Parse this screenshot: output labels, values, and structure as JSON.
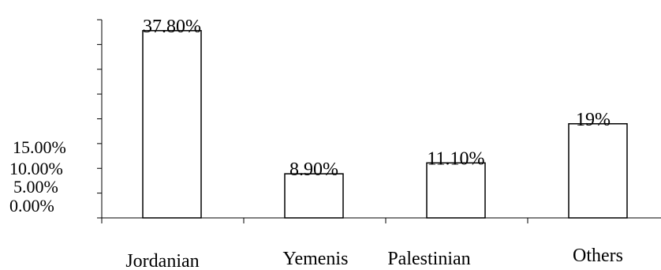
{
  "chart_data": {
    "type": "bar",
    "categories": [
      "Jordanian",
      "Yemenis",
      "Palestinian",
      "Others"
    ],
    "values": [
      37.8,
      8.9,
      11.1,
      19
    ],
    "data_labels": [
      "37.80%",
      "8.90%",
      "11.10%",
      "19%"
    ],
    "y_tick_labels": [
      "0.00%",
      "5.00%",
      "10.00%",
      "15.00%"
    ],
    "ylim": [
      0,
      40
    ],
    "grid": false,
    "legend": "none",
    "bar_fill": "#ffffff",
    "bar_stroke": "#000000"
  }
}
